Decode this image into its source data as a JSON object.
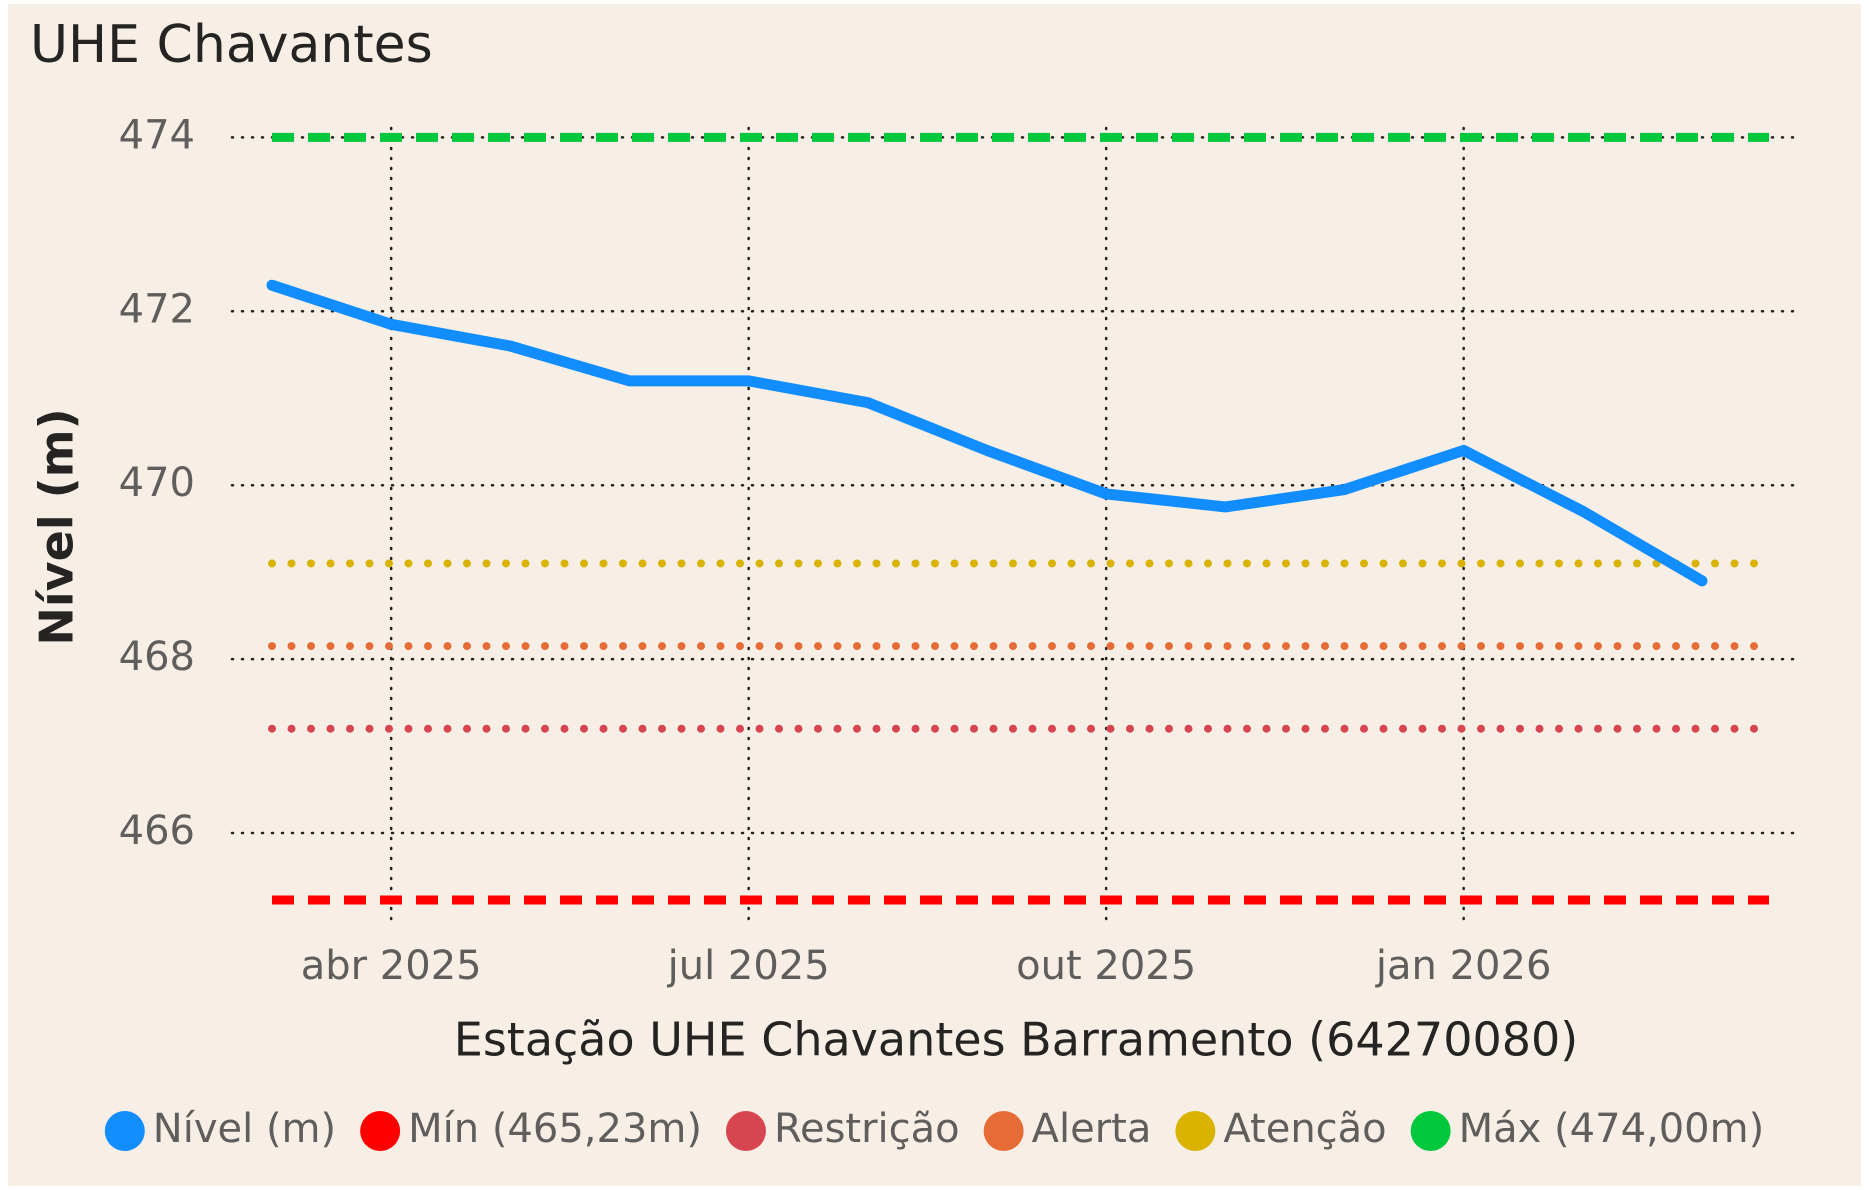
{
  "chart_data": {
    "type": "line",
    "title": "UHE Chavantes",
    "x_label": "Estação UHE Chavantes Barramento (64270080)",
    "y_label": "Nível (m)",
    "x": [
      "2025-03",
      "2025-04",
      "2025-05",
      "2025-06",
      "2025-07",
      "2025-08",
      "2025-09",
      "2025-10",
      "2025-11",
      "2025-12",
      "2026-01",
      "2026-02",
      "2026-03"
    ],
    "xlim": [
      "2025-03",
      "2026-03"
    ],
    "xticks": [
      {
        "value": "2025-04",
        "label": "abr 2025"
      },
      {
        "value": "2025-07",
        "label": "jul 2025"
      },
      {
        "value": "2025-10",
        "label": "out 2025"
      },
      {
        "value": "2026-01",
        "label": "jan 2026"
      }
    ],
    "ylim": [
      465,
      474.2
    ],
    "yticks": [
      466,
      468,
      470,
      472,
      474
    ],
    "grid": true,
    "series": [
      {
        "name": "Nível (m)",
        "color": "#118dff",
        "values": [
          472.3,
          471.85,
          471.6,
          471.2,
          471.2,
          470.95,
          470.4,
          469.9,
          469.75,
          469.95,
          470.4,
          469.7,
          468.9
        ]
      }
    ],
    "reference_lines": [
      {
        "name": "Mín (465,23m)",
        "color": "#ff0000",
        "value": 465.23,
        "style": "dashed"
      },
      {
        "name": "Restrição",
        "color": "#d64550",
        "value": 467.2,
        "style": "dotted"
      },
      {
        "name": "Alerta",
        "color": "#e66c37",
        "value": 468.15,
        "style": "dotted"
      },
      {
        "name": "Atenção",
        "color": "#d9b300",
        "value": 469.1,
        "style": "dotted"
      },
      {
        "name": "Máx (474,00m)",
        "color": "#00c83c",
        "value": 474,
        "style": "dashed"
      }
    ],
    "legend": "bottom"
  }
}
